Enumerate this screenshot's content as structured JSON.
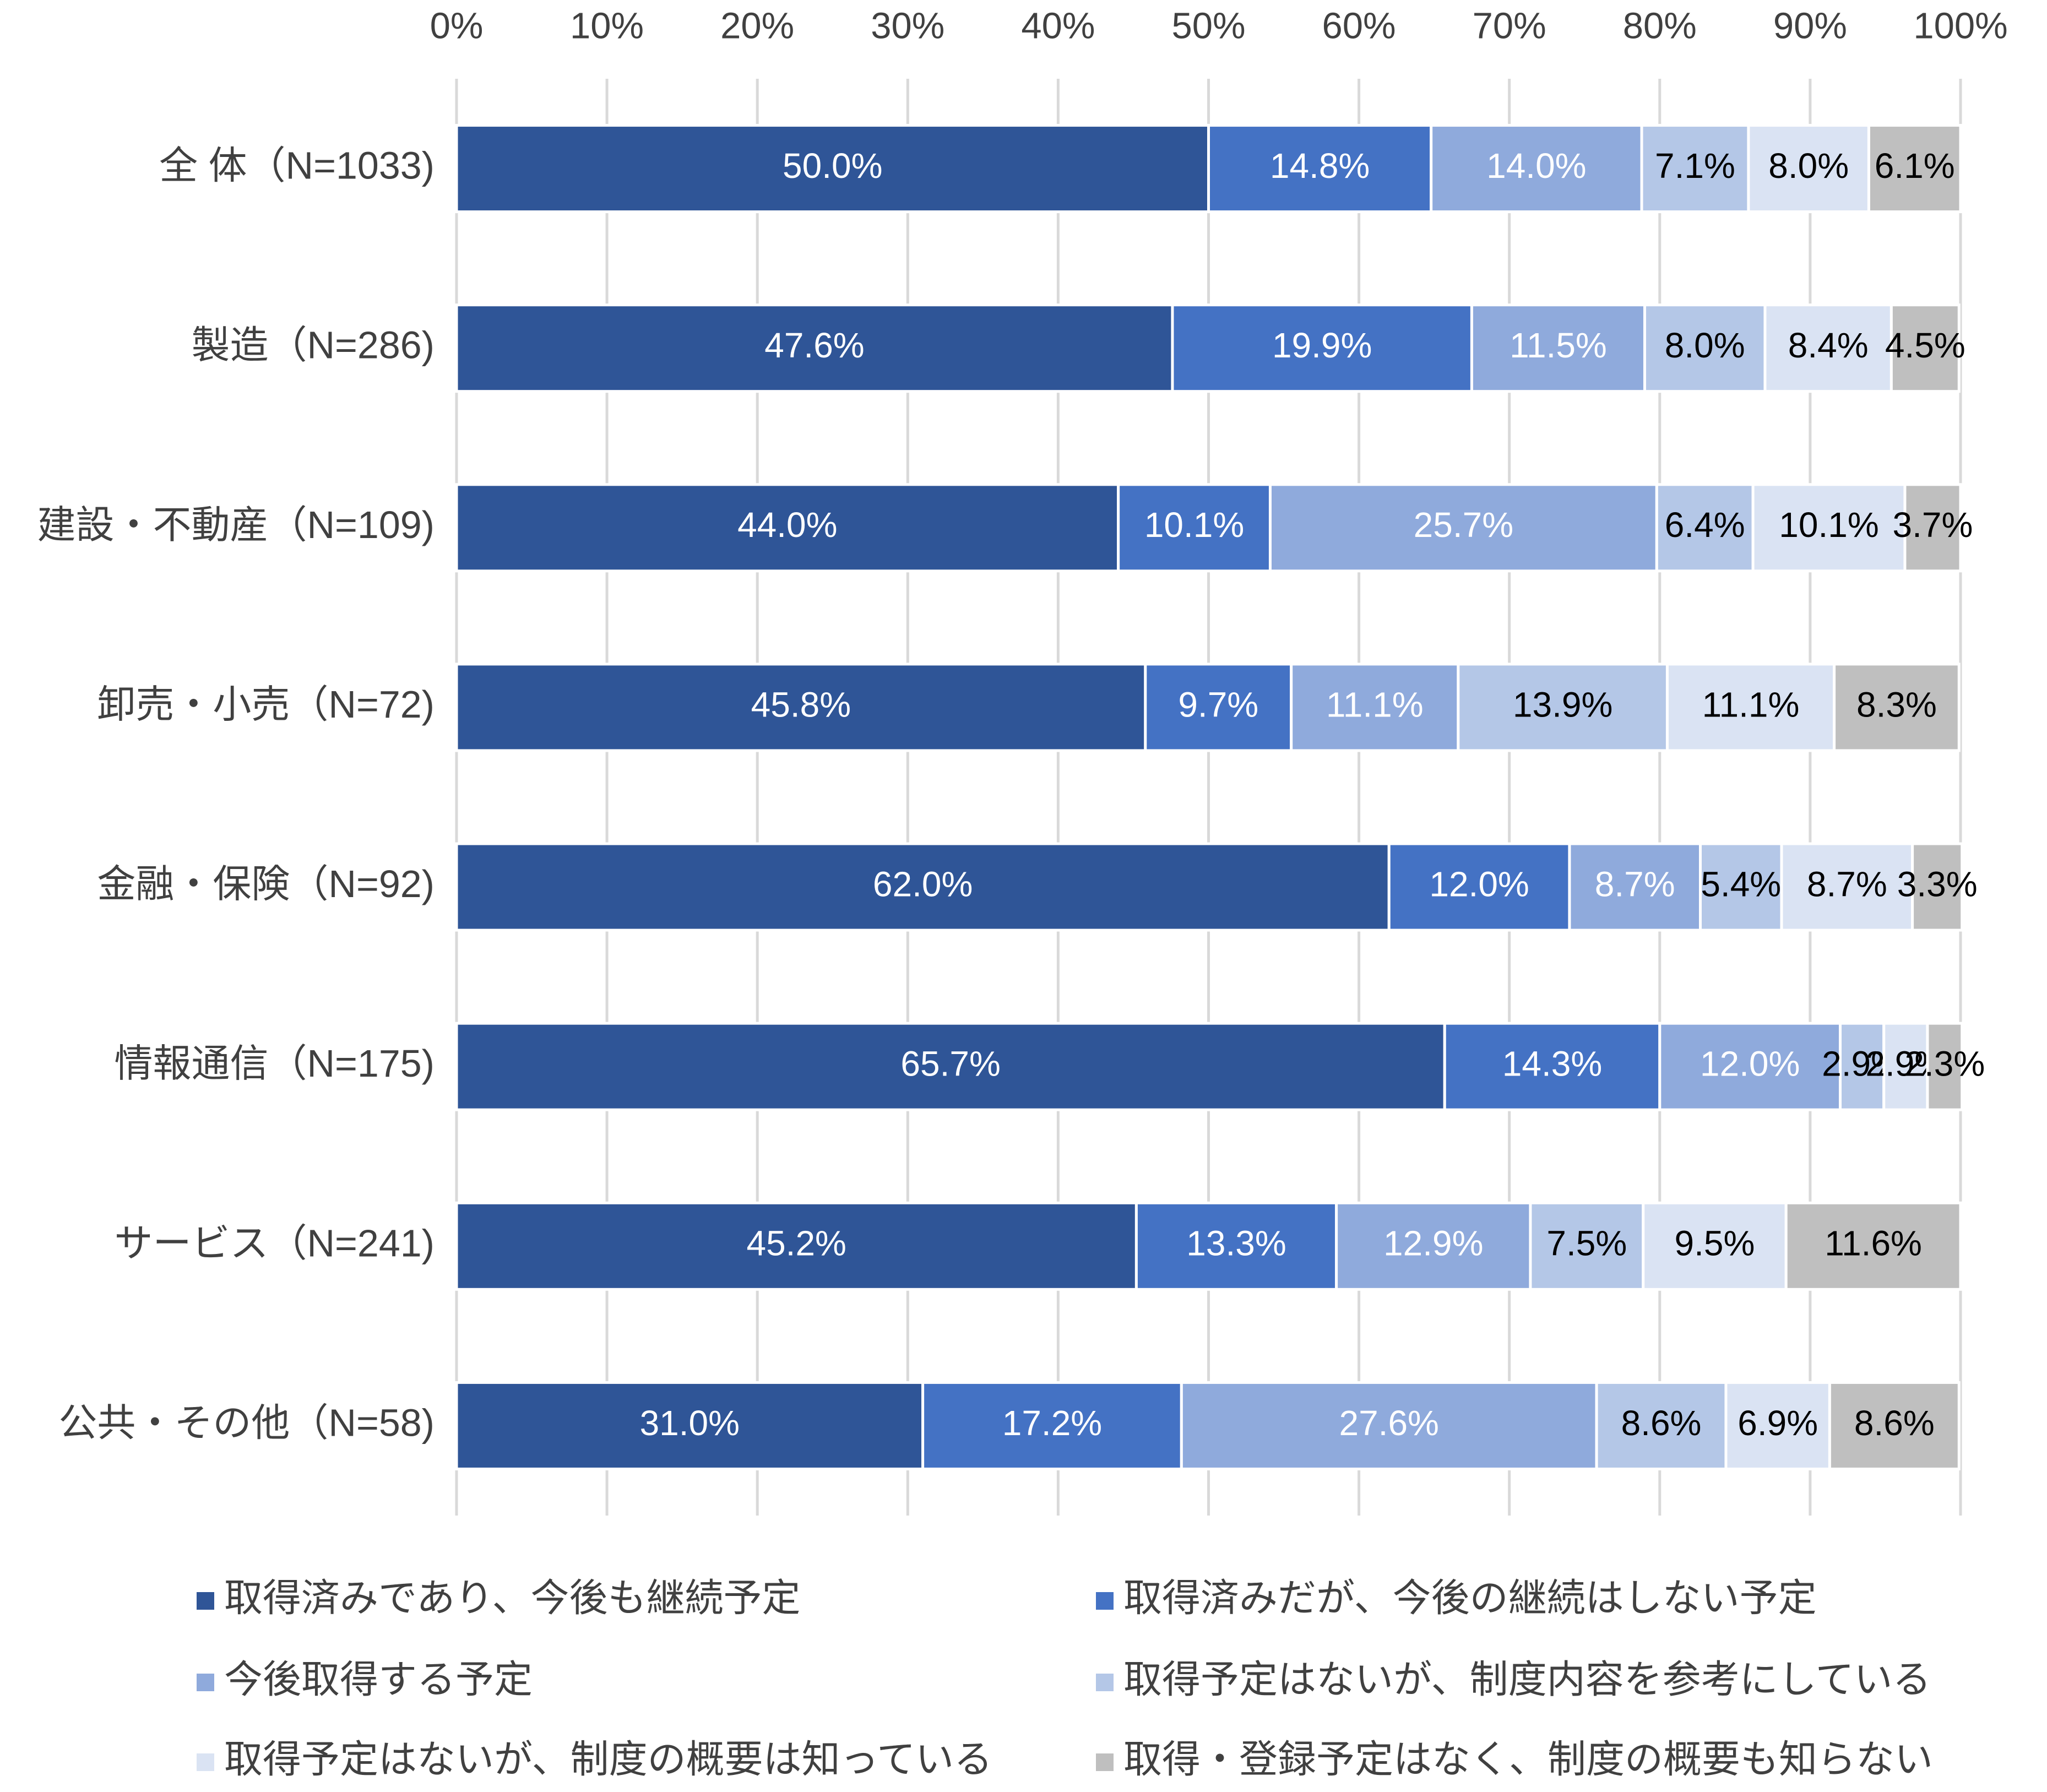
{
  "chart_data": {
    "type": "stacked-barh",
    "categories": [
      "全 体（N=1033)",
      "製造（N=286)",
      "建設・不動産（N=109)",
      "卸売・小売（N=72)",
      "金融・保険（N=92)",
      "情報通信（N=175)",
      "サービス（N=241)",
      "公共・その他（N=58)"
    ],
    "series": [
      {
        "name": "取得済みであり、今後も継続予定",
        "color": "#2f5597",
        "label_color": "#ffffff",
        "values": [
          50.0,
          47.6,
          44.0,
          45.8,
          62.0,
          65.7,
          45.2,
          31.0
        ],
        "value_labels": [
          "50.0%",
          "47.6%",
          "44.0%",
          "45.8%",
          "62.0%",
          "65.7%",
          "45.2%",
          "31.0%"
        ]
      },
      {
        "name": "取得済みだが、今後の継続はしない予定",
        "color": "#4472c4",
        "label_color": "#ffffff",
        "values": [
          14.8,
          19.9,
          10.1,
          9.7,
          12.0,
          14.3,
          13.3,
          17.2
        ],
        "value_labels": [
          "14.8%",
          "19.9%",
          "10.1%",
          "9.7%",
          "12.0%",
          "14.3%",
          "13.3%",
          "17.2%"
        ]
      },
      {
        "name": "今後取得する予定",
        "color": "#8faadc",
        "label_color": "#ffffff",
        "values": [
          14.0,
          11.5,
          25.7,
          11.1,
          8.7,
          12.0,
          12.9,
          27.6
        ],
        "value_labels": [
          "14.0%",
          "11.5%",
          "25.7%",
          "11.1%",
          "8.7%",
          "12.0%",
          "12.9%",
          "27.6%"
        ]
      },
      {
        "name": "取得予定はないが、制度内容を参考にしている",
        "color": "#b4c7e7",
        "label_color": "#000000",
        "values": [
          7.1,
          8.0,
          6.4,
          13.9,
          5.4,
          2.9,
          7.5,
          8.6
        ],
        "value_labels": [
          "7.1%",
          "8.0%",
          "6.4%",
          "13.9%",
          "5.4%",
          "2.9%",
          "7.5%",
          "8.6%"
        ]
      },
      {
        "name": "取得予定はないが、制度の概要は知っている",
        "color": "#dae3f3",
        "label_color": "#000000",
        "values": [
          8.0,
          8.4,
          10.1,
          11.1,
          8.7,
          2.9,
          9.5,
          6.9
        ],
        "value_labels": [
          "8.0%",
          "8.4%",
          "10.1%",
          "11.1%",
          "8.7%",
          "2.9%",
          "9.5%",
          "6.9%"
        ]
      },
      {
        "name": "取得・登録予定はなく、制度の概要も知らない",
        "color": "#bfbfbf",
        "label_color": "#000000",
        "values": [
          6.1,
          4.5,
          3.7,
          8.3,
          3.3,
          2.3,
          11.6,
          8.6
        ],
        "value_labels": [
          "6.1%",
          "4.5%",
          "3.7%",
          "8.3%",
          "3.3%",
          "2.3%",
          "11.6%",
          "8.6%"
        ]
      }
    ],
    "xlim": [
      0,
      100
    ],
    "xticks": [
      {
        "value": 0,
        "label": "0%"
      },
      {
        "value": 10,
        "label": "10%"
      },
      {
        "value": 20,
        "label": "20%"
      },
      {
        "value": 30,
        "label": "30%"
      },
      {
        "value": 40,
        "label": "40%"
      },
      {
        "value": 50,
        "label": "50%"
      },
      {
        "value": 60,
        "label": "60%"
      },
      {
        "value": 70,
        "label": "70%"
      },
      {
        "value": 80,
        "label": "80%"
      },
      {
        "value": 90,
        "label": "90%"
      },
      {
        "value": 100,
        "label": "100%"
      }
    ],
    "grid": true
  }
}
